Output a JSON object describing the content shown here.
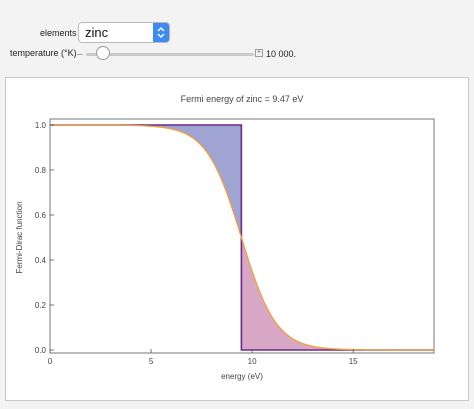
{
  "controls": {
    "elements_label": "elements",
    "element_value": "zinc",
    "temperature_label": "temperature (°K)",
    "temperature_value_text": "10 000.",
    "temperature_slider": {
      "value": 10000,
      "min": 0,
      "max": 100000
    }
  },
  "chart_data": {
    "type": "line",
    "title": "Fermi energy of zinc = 9.47 eV",
    "xlabel": "energy (eV)",
    "ylabel": "Fermi-Dirac function",
    "xlim": [
      0,
      19
    ],
    "ylim": [
      0,
      1
    ],
    "x_ticks": [
      0,
      5,
      10,
      15
    ],
    "y_ticks": [
      0.0,
      0.2,
      0.4,
      0.6,
      0.8,
      1.0
    ],
    "x_tick_labels": [
      "0",
      "5",
      "10",
      "15"
    ],
    "y_tick_labels": [
      "0.0",
      "0.2",
      "0.4",
      "0.6",
      "0.8",
      "1.0"
    ],
    "fermi_energy": 9.47,
    "temperature_K": 10000,
    "grid": false,
    "series": [
      {
        "kind": "fermi-dirac-curve",
        "color": "#f2a23a",
        "x_start": 0,
        "x_end": 19
      },
      {
        "kind": "step-function",
        "color": "#6a2a8a"
      }
    ],
    "fills": {
      "below_fermi": "#9fa4d2",
      "above_fermi": "#d7a7c5"
    }
  }
}
